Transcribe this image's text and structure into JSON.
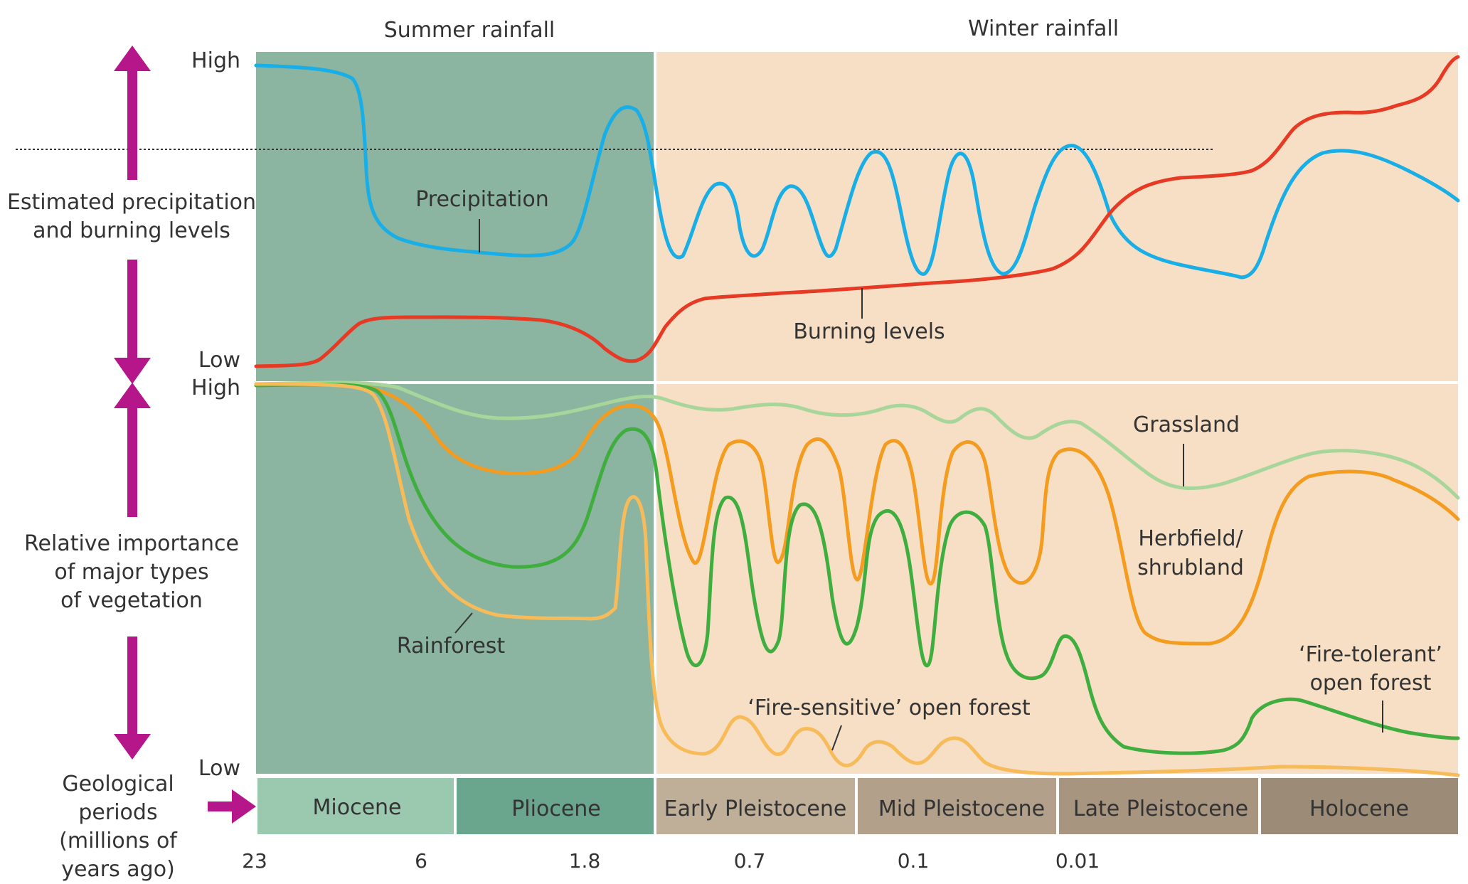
{
  "headers": {
    "summer": "Summer rainfall",
    "winter": "Winter rainfall"
  },
  "axis_top": {
    "high": "High",
    "low": "Low",
    "label_line1": "Estimated precipitation",
    "label_line2": "and burning levels"
  },
  "axis_bottom": {
    "high": "High",
    "low": "Low",
    "label_line1": "Relative importance",
    "label_line2": "of major types",
    "label_line3": "of vegetation"
  },
  "geo_label": {
    "line1": "Geological",
    "line2": "periods",
    "line3": "(millions of",
    "line4": "years ago)"
  },
  "periods": [
    {
      "name": "Miocene",
      "color": "#9bc9b0"
    },
    {
      "name": "Pliocene",
      "color": "#6aa58e"
    },
    {
      "name": "Early Pleistocene",
      "color": "#bfae98"
    },
    {
      "name": "Mid Pleistocene",
      "color": "#b2a08a"
    },
    {
      "name": "Late Pleistocene",
      "color": "#a8957f"
    },
    {
      "name": "Holocene",
      "color": "#9c8b76"
    }
  ],
  "ticks": [
    "23",
    "6",
    "1.8",
    "0.7",
    "0.1",
    "0.01"
  ],
  "curve_labels": {
    "precipitation": "Precipitation",
    "burning": "Burning levels",
    "grassland": "Grassland",
    "herbfield_1": "Herbfield/",
    "herbfield_2": "shrubland",
    "rainforest": "Rainforest",
    "fire_sensitive": "‘Fire-sensitive’ open forest",
    "fire_tolerant_1": "‘Fire-tolerant’",
    "fire_tolerant_2": "open forest"
  },
  "colors": {
    "summer_bg": "#8bb5a1",
    "winter_bg": "#f6dfc5",
    "precipitation": "#1aaee6",
    "burning": "#e63a24",
    "grassland": "#a8d69a",
    "herbfield": "#f39c1f",
    "fire_sensitive_forest": "#3fae3f",
    "rainforest": "#f7bb5a",
    "arrow": "#b5178a"
  }
}
